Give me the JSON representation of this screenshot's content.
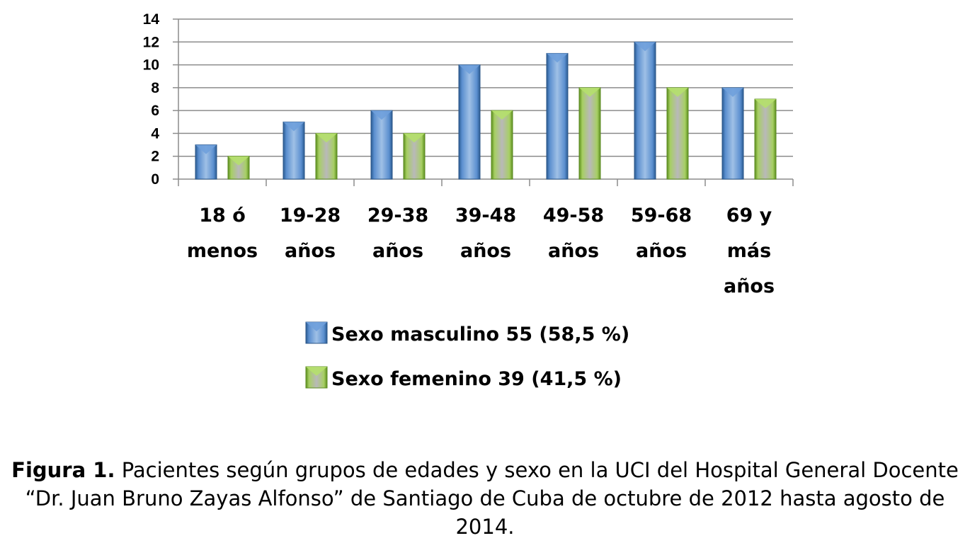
{
  "chart_data": {
    "type": "bar",
    "categories": [
      [
        "18 ó",
        "menos"
      ],
      [
        "19-28",
        "años"
      ],
      [
        "29-38",
        "años"
      ],
      [
        "39-48",
        "años"
      ],
      [
        "49-58",
        "años"
      ],
      [
        "59-68",
        "años"
      ],
      [
        "69 y",
        "más",
        "años"
      ]
    ],
    "series": [
      {
        "name": "Sexo masculino 55 (58,5 %)",
        "values": [
          3,
          5,
          6,
          10,
          11,
          12,
          8
        ],
        "color": "#4f81bd"
      },
      {
        "name": "Sexo femenino 39 (41,5 %)",
        "values": [
          2,
          4,
          4,
          6,
          8,
          8,
          7
        ],
        "color": "#8ac43f"
      }
    ],
    "ylim": [
      0,
      14
    ],
    "yticks": [
      0,
      2,
      4,
      6,
      8,
      10,
      12,
      14
    ],
    "grid": true,
    "legend": "bottom"
  },
  "caption": {
    "label": "Figura 1.",
    "text": " Pacientes según grupos de edades y sexo en la UCI del Hospital General Docente “Dr. Juan Bruno Zayas Alfonso” de Santiago de Cuba de octubre de 2012 hasta agosto de 2014."
  }
}
